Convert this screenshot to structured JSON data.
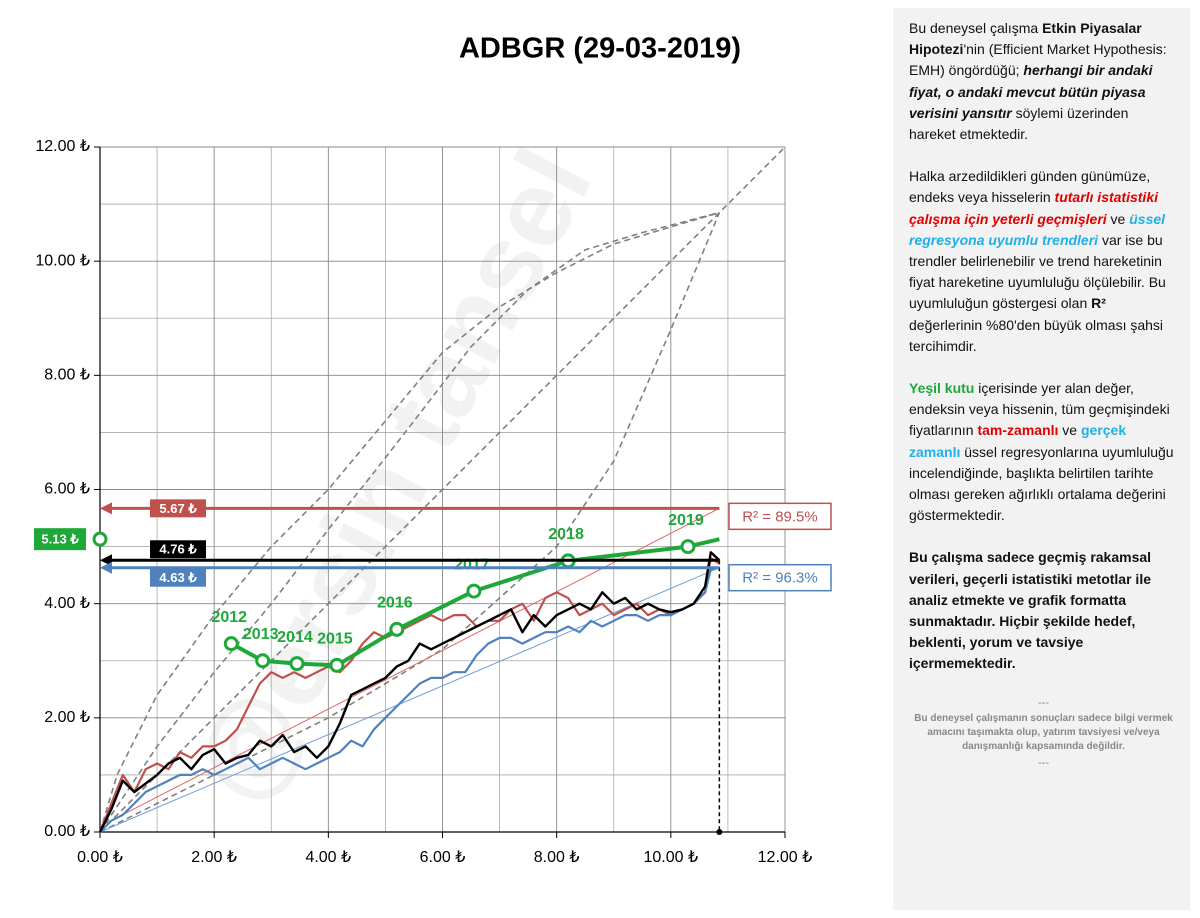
{
  "chart_data": {
    "type": "line",
    "title": "ADBGR (29-03-2019)",
    "watermark": "@ersin tansel",
    "xlim": [
      0,
      12
    ],
    "ylim": [
      0,
      12
    ],
    "xticks": [
      {
        "value": 0,
        "label": "0.00 ₺"
      },
      {
        "value": 2,
        "label": "2.00 ₺"
      },
      {
        "value": 4,
        "label": "4.00 ₺"
      },
      {
        "value": 6,
        "label": "6.00 ₺"
      },
      {
        "value": 8,
        "label": "8.00 ₺"
      },
      {
        "value": 10,
        "label": "10.00 ₺"
      },
      {
        "value": 12,
        "label": "12.00 ₺"
      }
    ],
    "yticks": [
      {
        "value": 0,
        "label": "0.00 ₺"
      },
      {
        "value": 2,
        "label": "2.00 ₺"
      },
      {
        "value": 4,
        "label": "4.00 ₺"
      },
      {
        "value": 6,
        "label": "6.00 ₺"
      },
      {
        "value": 8,
        "label": "8.00 ₺"
      },
      {
        "value": 10,
        "label": "10.00 ₺"
      },
      {
        "value": 12,
        "label": "12.00 ₺"
      }
    ],
    "minor_ticks": [
      1,
      3,
      5,
      7,
      9,
      11
    ],
    "grid": true,
    "series": [
      {
        "color": "#808080",
        "style": "dashed",
        "width": 1.6,
        "x": [
          0,
          12
        ],
        "values": [
          0,
          12
        ]
      },
      {
        "color": "#808080",
        "style": "dashed",
        "width": 1.6,
        "x": [
          0,
          0.3,
          1,
          2,
          3,
          4,
          5,
          6,
          7,
          8,
          9,
          10,
          10.85
        ],
        "values": [
          0,
          1.0,
          2.4,
          3.8,
          5.0,
          6.0,
          7.2,
          8.4,
          9.2,
          9.8,
          10.3,
          10.6,
          10.85
        ]
      },
      {
        "color": "#808080",
        "style": "dashed",
        "width": 1.6,
        "x": [
          0,
          1,
          2,
          3,
          4,
          4.8,
          5.5,
          6.5,
          7.5,
          8.5,
          9.5,
          10.85
        ],
        "values": [
          0,
          1.5,
          2.8,
          4.0,
          5.3,
          6.3,
          7.2,
          8.5,
          9.5,
          10.2,
          10.5,
          10.85
        ]
      },
      {
        "color": "#808080",
        "style": "dashed",
        "width": 1.6,
        "x": [
          0,
          1,
          2,
          4,
          6,
          8,
          9,
          10,
          10.85
        ],
        "values": [
          0,
          0.5,
          1.0,
          2.0,
          3.2,
          5.0,
          6.5,
          8.8,
          10.85
        ]
      },
      {
        "color": "#e06666",
        "style": "solid",
        "width": 1,
        "x": [
          0,
          10.85
        ],
        "values": [
          0.1,
          5.67
        ]
      },
      {
        "color": "#6f9fd8",
        "style": "solid",
        "width": 1,
        "x": [
          0,
          10.85
        ],
        "values": [
          0,
          4.63
        ]
      },
      {
        "color": "#c0504d",
        "style": "solid",
        "width": 2.2,
        "x": [
          0,
          0.2,
          0.4,
          0.6,
          0.8,
          1.0,
          1.2,
          1.4,
          1.6,
          1.8,
          2.0,
          2.2,
          2.4,
          2.6,
          2.8,
          3.0,
          3.2,
          3.4,
          3.6,
          3.8,
          4.0,
          4.2,
          4.4,
          4.6,
          4.8,
          5.0,
          5.2,
          5.4,
          5.6,
          5.8,
          6.0,
          6.2,
          6.4,
          6.6,
          6.8,
          7.0,
          7.2,
          7.4,
          7.6,
          7.8,
          8.0,
          8.2,
          8.4,
          8.6,
          8.8,
          9.0,
          9.2,
          9.4,
          9.6,
          9.8,
          10.0,
          10.2,
          10.4,
          10.6,
          10.7,
          10.85
        ],
        "values": [
          0,
          0.5,
          1.0,
          0.7,
          1.1,
          1.2,
          1.1,
          1.4,
          1.3,
          1.5,
          1.5,
          1.6,
          1.8,
          2.2,
          2.6,
          2.8,
          2.7,
          2.8,
          2.7,
          2.8,
          2.9,
          2.8,
          3.0,
          3.3,
          3.5,
          3.4,
          3.5,
          3.6,
          3.7,
          3.8,
          3.7,
          3.8,
          3.8,
          3.6,
          3.7,
          3.7,
          3.9,
          4.0,
          3.7,
          4.1,
          4.2,
          4.1,
          3.8,
          3.9,
          4.0,
          3.8,
          3.9,
          4.0,
          3.8,
          3.9,
          3.8,
          3.9,
          4.0,
          4.2,
          4.8,
          4.7
        ]
      },
      {
        "color": "#4f81bd",
        "style": "solid",
        "width": 2.2,
        "x": [
          0,
          0.2,
          0.4,
          0.6,
          0.8,
          1.0,
          1.2,
          1.4,
          1.6,
          1.8,
          2.0,
          2.2,
          2.4,
          2.6,
          2.8,
          3.0,
          3.2,
          3.4,
          3.6,
          3.8,
          4.0,
          4.2,
          4.4,
          4.6,
          4.8,
          5.0,
          5.2,
          5.4,
          5.6,
          5.8,
          6.0,
          6.2,
          6.4,
          6.6,
          6.8,
          7.0,
          7.2,
          7.4,
          7.6,
          7.8,
          8.0,
          8.2,
          8.4,
          8.6,
          8.8,
          9.0,
          9.2,
          9.4,
          9.6,
          9.8,
          10.0,
          10.2,
          10.4,
          10.6,
          10.7,
          10.85
        ],
        "values": [
          0,
          0.2,
          0.3,
          0.5,
          0.7,
          0.8,
          0.9,
          1.0,
          1.0,
          1.1,
          1.0,
          1.1,
          1.2,
          1.3,
          1.1,
          1.2,
          1.3,
          1.2,
          1.1,
          1.2,
          1.3,
          1.4,
          1.6,
          1.5,
          1.8,
          2.0,
          2.2,
          2.4,
          2.6,
          2.7,
          2.7,
          2.8,
          2.8,
          3.1,
          3.3,
          3.4,
          3.4,
          3.3,
          3.4,
          3.5,
          3.5,
          3.6,
          3.5,
          3.7,
          3.6,
          3.7,
          3.8,
          3.8,
          3.7,
          3.8,
          3.8,
          3.9,
          4.0,
          4.2,
          4.6,
          4.63
        ]
      },
      {
        "color": "#000000",
        "style": "solid",
        "width": 2.4,
        "x": [
          0,
          0.2,
          0.4,
          0.6,
          0.8,
          1.0,
          1.2,
          1.4,
          1.6,
          1.8,
          2.0,
          2.2,
          2.4,
          2.6,
          2.8,
          3.0,
          3.2,
          3.4,
          3.6,
          3.8,
          4.0,
          4.2,
          4.4,
          4.6,
          4.8,
          5.0,
          5.2,
          5.4,
          5.6,
          5.8,
          6.0,
          6.2,
          6.4,
          6.6,
          6.8,
          7.0,
          7.2,
          7.4,
          7.6,
          7.8,
          8.0,
          8.2,
          8.4,
          8.6,
          8.8,
          9.0,
          9.2,
          9.4,
          9.6,
          9.8,
          10.0,
          10.2,
          10.4,
          10.6,
          10.7,
          10.85
        ],
        "values": [
          0,
          0.4,
          0.9,
          0.7,
          0.85,
          1.0,
          1.2,
          1.3,
          1.1,
          1.35,
          1.45,
          1.2,
          1.3,
          1.35,
          1.6,
          1.5,
          1.7,
          1.4,
          1.5,
          1.3,
          1.5,
          1.9,
          2.4,
          2.5,
          2.6,
          2.7,
          2.9,
          3.0,
          3.3,
          3.2,
          3.3,
          3.4,
          3.5,
          3.6,
          3.7,
          3.8,
          3.9,
          3.5,
          3.8,
          3.6,
          3.8,
          3.9,
          4.0,
          3.9,
          4.2,
          4.0,
          4.1,
          3.9,
          4.0,
          3.9,
          3.85,
          3.9,
          4.0,
          4.3,
          4.9,
          4.76
        ]
      },
      {
        "color": "#1fa83a",
        "style": "solid",
        "width": 4,
        "markers": true,
        "x": [
          2.3,
          2.85,
          3.45,
          4.15,
          5.2,
          6.55,
          8.2,
          10.3,
          10.85
        ],
        "values": [
          3.3,
          3.0,
          2.95,
          2.92,
          3.55,
          4.22,
          4.75,
          5.0,
          5.13
        ],
        "point_labels": [
          "2012",
          "2013",
          "2014",
          "2015",
          "2016",
          "2017",
          "2018",
          "2019",
          null
        ]
      }
    ],
    "levels": [
      {
        "color": "#c0504d",
        "value": 5.67,
        "value_label": "5.67 ₺",
        "annotation": "R² = 89.5%"
      },
      {
        "color": "#000000",
        "value": 4.76,
        "value_label": "4.76 ₺"
      },
      {
        "color": "#4f81bd",
        "value": 4.63,
        "value_label": "4.63 ₺",
        "annotation": "R² = 96.3%"
      },
      {
        "color": "#1fa83a",
        "value": 5.13,
        "value_label": "5.13 ₺"
      }
    ]
  },
  "panel": {
    "paragraphs": [
      [
        {
          "text": "Bu deneysel çalışma ",
          "style": "plain"
        },
        {
          "text": "Etkin Piyasalar Hipotezi",
          "style": "bold"
        },
        {
          "text": "'nin (Efficient Market Hypothesis: EMH) öngördüğü; ",
          "style": "plain"
        },
        {
          "text": "herhangi bir andaki fiyat, o andaki mevcut bütün piyasa verisini yansıtır",
          "style": "bold-italic"
        },
        {
          "text": "  söylemi üzerinden hareket etmektedir.",
          "style": "plain"
        }
      ],
      [
        {
          "text": "Halka arzedildikleri günden günümüze, endeks veya hisselerin ",
          "style": "plain"
        },
        {
          "text": "tutarlı istatistiki çalışma için yeterli geçmişleri",
          "style": "red-bold-italic"
        },
        {
          "text": " ve ",
          "style": "plain"
        },
        {
          "text": "üssel regresyona uyumlu trendleri",
          "style": "cyan-bold-italic"
        },
        {
          "text": " var ise bu trendler belirlenebilir ve trend hareketinin fiyat hareketine uyumluluğu ölçülebilir. Bu uyumluluğun göstergesi olan ",
          "style": "plain"
        },
        {
          "text": "R²",
          "style": "bold"
        },
        {
          "text": " değerlerinin %80'den büyük olması şahsi tercihimdir.",
          "style": "plain"
        }
      ],
      [
        {
          "text": "Yeşil kutu",
          "style": "green-bold"
        },
        {
          "text": " içerisinde yer alan değer, endeksin veya hissenin, tüm geçmişindeki fiyatlarının ",
          "style": "plain"
        },
        {
          "text": "tam-zamanlı",
          "style": "red-bold"
        },
        {
          "text": " ve ",
          "style": "plain"
        },
        {
          "text": "gerçek zamanlı",
          "style": "cyan-bold"
        },
        {
          "text": " üssel regresyonlarına uyumluluğu incelendiğinde, başlıkta belirtilen tarihte olması gereken ağırlıklı ortalama değerini göstermektedir.",
          "style": "plain"
        }
      ],
      [
        {
          "text": "Bu çalışma sadece geçmiş rakamsal verileri, geçerli istatistiki metotlar ile  analiz etmekte ve grafik formatta sunmaktadır. Hiçbir şekilde hedef, beklenti, yorum ve tavsiye içermemektedir.",
          "style": "bold"
        }
      ]
    ],
    "separator": "---",
    "disclaimer": "Bu deneysel çalışmanın sonuçları sadece bilgi vermek amacını taşımakta olup, yatırım tavsiyesi ve/veya danışmanlığı kapsamında değildir."
  }
}
